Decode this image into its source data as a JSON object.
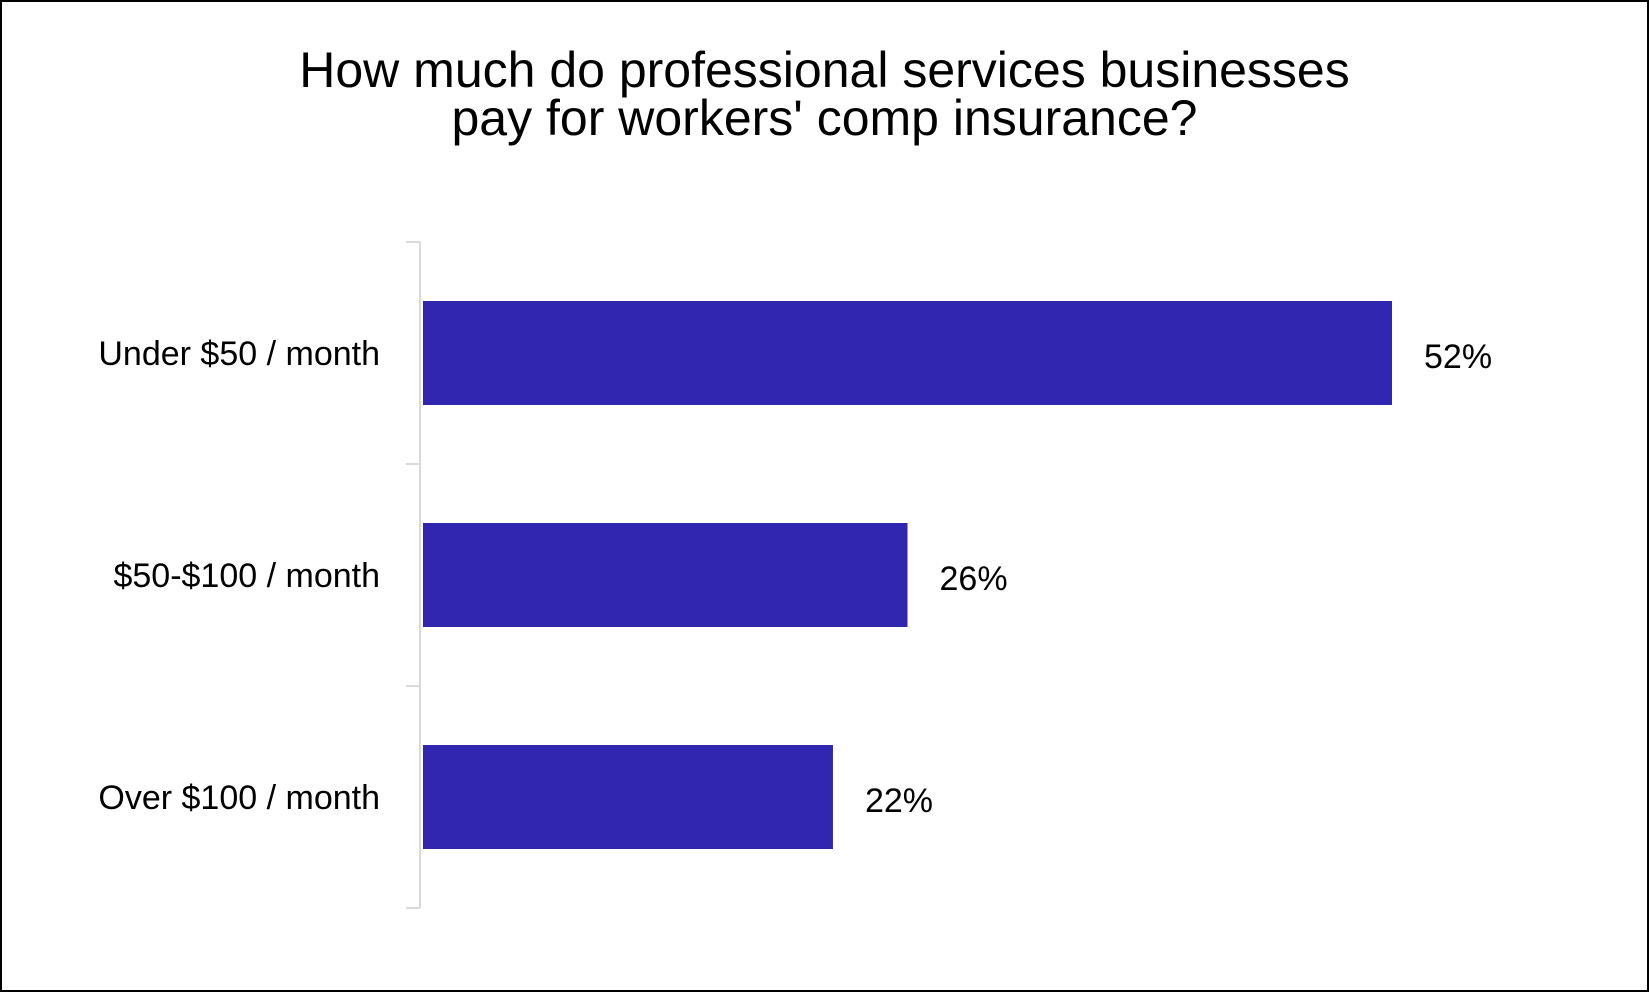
{
  "chart_data": {
    "type": "bar",
    "orientation": "horizontal",
    "title": "How much do professional services businesses\npay for workers' comp insurance?",
    "categories": [
      "Under $50 / month",
      "$50-$100 / month",
      "Over $100 / month"
    ],
    "values": [
      52,
      26,
      22
    ],
    "data_labels": [
      "52%",
      "26%",
      "22%"
    ],
    "value_unit": "%",
    "xlim": [
      0,
      60
    ],
    "grid": false,
    "legend": "none",
    "colors": {
      "bar": "#3026B0",
      "axis": "#D9D9D9",
      "text": "#000000",
      "border": "#000000"
    }
  }
}
